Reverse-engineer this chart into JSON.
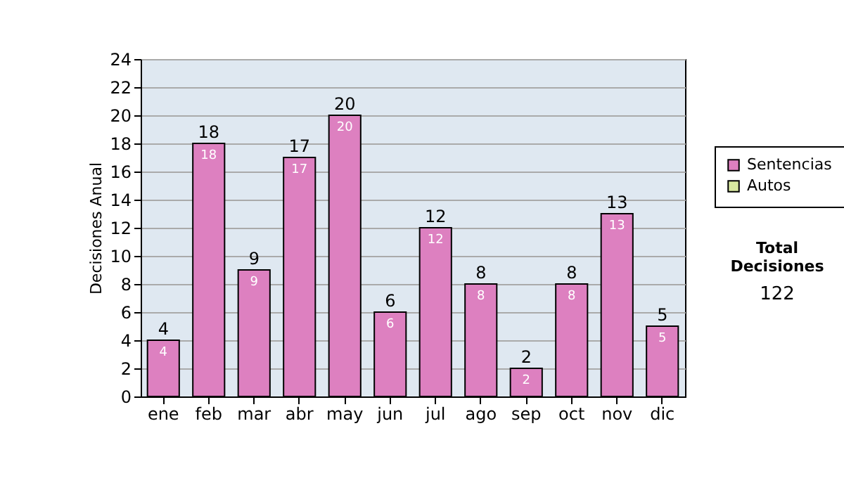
{
  "chart_data": {
    "type": "bar",
    "stacked": true,
    "ylabel": "Decisiones Anual",
    "categories": [
      "ene",
      "feb",
      "mar",
      "abr",
      "may",
      "jun",
      "jul",
      "ago",
      "sep",
      "oct",
      "nov",
      "dic"
    ],
    "series": [
      {
        "name": "Sentencias",
        "color": "#dd80c0",
        "values": [
          4,
          18,
          9,
          17,
          20,
          6,
          12,
          8,
          2,
          8,
          13,
          5
        ]
      },
      {
        "name": "Autos",
        "color": "#d8e8a0",
        "values": [
          null,
          null,
          null,
          null,
          null,
          null,
          null,
          null,
          null,
          null,
          null,
          null
        ]
      }
    ],
    "ylim": [
      0,
      24
    ],
    "yticks": [
      0,
      2,
      4,
      6,
      8,
      10,
      12,
      14,
      16,
      18,
      20,
      22,
      24
    ],
    "grid": "y",
    "legend": "right",
    "data_labels": true,
    "totals": [
      "4",
      "18",
      "9",
      "17",
      "20",
      "6",
      "12",
      "8",
      "2",
      "8",
      "13",
      "5"
    ],
    "annotations": [
      "Total Decisiones",
      "122"
    ]
  }
}
